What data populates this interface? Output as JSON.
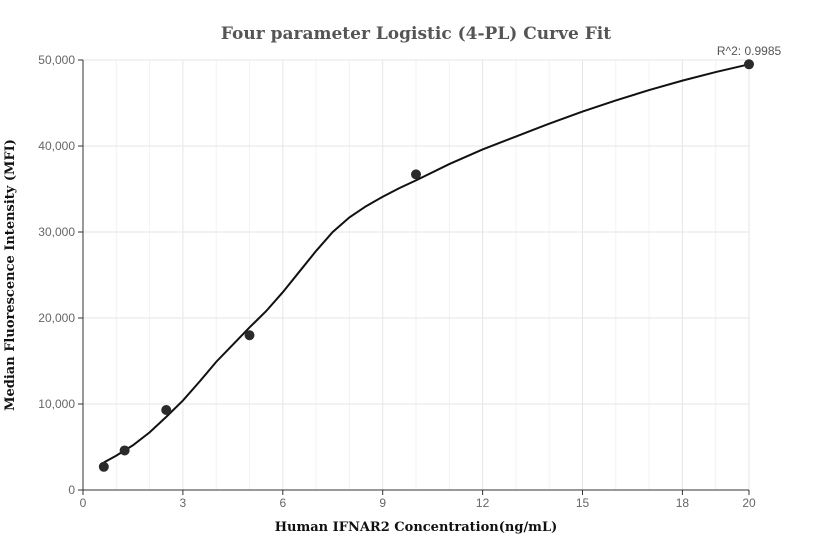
{
  "chart_data": {
    "type": "scatter",
    "title": "Four parameter Logistic (4-PL) Curve Fit",
    "xlabel": "Human IFNAR2 Concentration(ng/mL)",
    "ylabel": "Median Fluorescence Intensity (MFI)",
    "annotation": "R^2: 0.9985",
    "xlim": [
      0,
      20
    ],
    "ylim": [
      0,
      50000
    ],
    "x_ticks": [
      0,
      3,
      6,
      9,
      12,
      15,
      18,
      20
    ],
    "x_tick_labels": [
      "0",
      "3",
      "6",
      "9",
      "12",
      "15",
      "18",
      "20"
    ],
    "y_ticks": [
      0,
      10000,
      20000,
      30000,
      40000,
      50000
    ],
    "y_tick_labels": [
      "0",
      "10,000",
      "20,000",
      "30,000",
      "40,000",
      "50,000"
    ],
    "grid": true,
    "series": [
      {
        "type": "scatter",
        "x": [
          0.625,
          1.25,
          2.5,
          5,
          10,
          20
        ],
        "y": [
          2700,
          4600,
          9300,
          18000,
          36700,
          49500
        ]
      },
      {
        "type": "line",
        "x": [
          0.625,
          1,
          1.5,
          2,
          2.5,
          3,
          3.5,
          4,
          4.5,
          5,
          5.5,
          6,
          6.5,
          7,
          7.5,
          8,
          8.5,
          9,
          9.5,
          10,
          11,
          12,
          13,
          14,
          15,
          16,
          17,
          18,
          19,
          20
        ],
        "y": [
          3200,
          4000,
          5200,
          6700,
          8500,
          10400,
          12600,
          14900,
          16900,
          18900,
          20800,
          23000,
          25400,
          27800,
          30000,
          31700,
          33000,
          34100,
          35100,
          36000,
          37900,
          39600,
          41100,
          42600,
          44000,
          45300,
          46500,
          47600,
          48600,
          49500
        ]
      }
    ]
  }
}
